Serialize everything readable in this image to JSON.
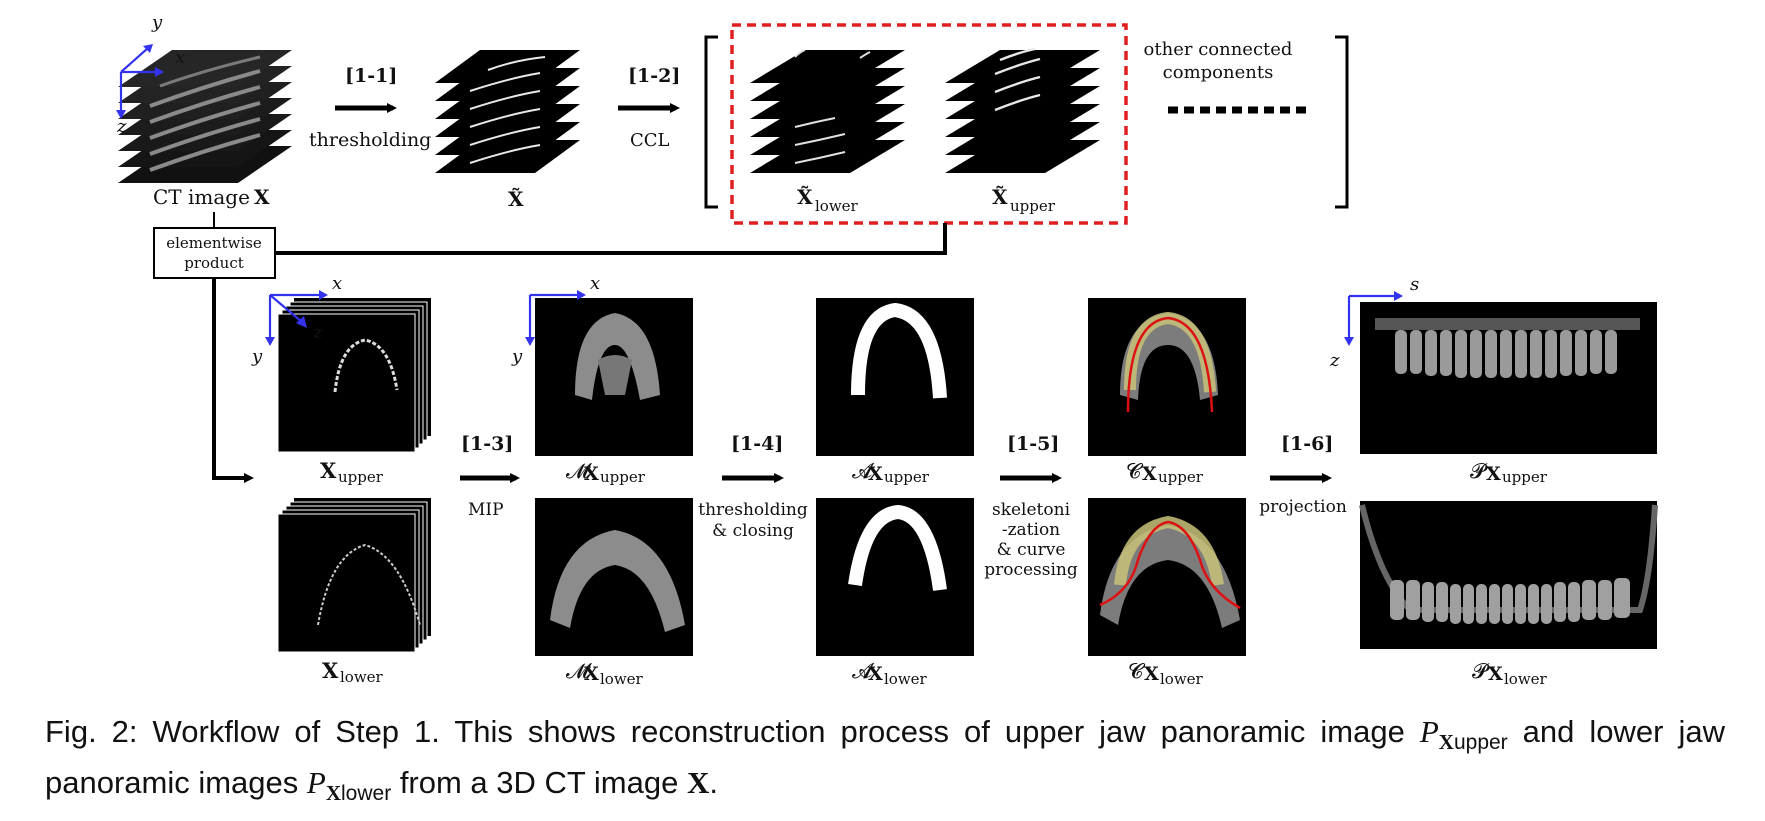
{
  "labels": {
    "ct_image": "CT image",
    "ct_symbol": "X",
    "x_tilde": "X̃",
    "x_tilde_lower": "X̃",
    "x_tilde_upper": "X̃",
    "sub_lower": "lower",
    "sub_upper": "upper",
    "other_line1": "other connected",
    "other_line2": "components",
    "elementwise_line1": "elementwise",
    "elementwise_line2": "product",
    "x_upper": "X",
    "x_lower": "X",
    "m_upper": "𝓜",
    "m_lower": "𝓜",
    "a_upper": "𝓐",
    "a_lower": "𝓐",
    "c_upper": "𝓒",
    "c_lower": "𝓒",
    "p_upper": "𝓟",
    "p_lower": "𝓟"
  },
  "steps": [
    {
      "id": "[1-1]",
      "desc": [
        "thresholding"
      ]
    },
    {
      "id": "[1-2]",
      "desc": [
        "CCL"
      ]
    },
    {
      "id": "[1-3]",
      "desc": [
        "MIP"
      ]
    },
    {
      "id": "[1-4]",
      "desc": [
        "thresholding",
        "& closing"
      ]
    },
    {
      "id": "[1-5]",
      "desc": [
        "skeletoni",
        "-zation",
        "& curve",
        "processing"
      ]
    },
    {
      "id": "[1-6]",
      "desc": [
        "projection"
      ]
    }
  ],
  "axes": {
    "x": "x",
    "y": "y",
    "z": "z",
    "s": "s"
  },
  "caption": {
    "part1": "Fig. 2: Workflow of Step 1. This shows reconstruction process of upper jaw panoramic image ",
    "p1": "P",
    "p1_sym": "X",
    "p1_sub": "upper",
    "part2": " and lower jaw panoramic images ",
    "p2": "P",
    "p2_sym": "X",
    "p2_sub": "lower",
    "part3": " from a 3D CT image ",
    "ct": "X",
    "end": "."
  },
  "colors": {
    "axis": "#3333ee",
    "dashed_box": "#e02020",
    "curve": "#dd1111",
    "tooth_mask": "#c9c27a"
  }
}
